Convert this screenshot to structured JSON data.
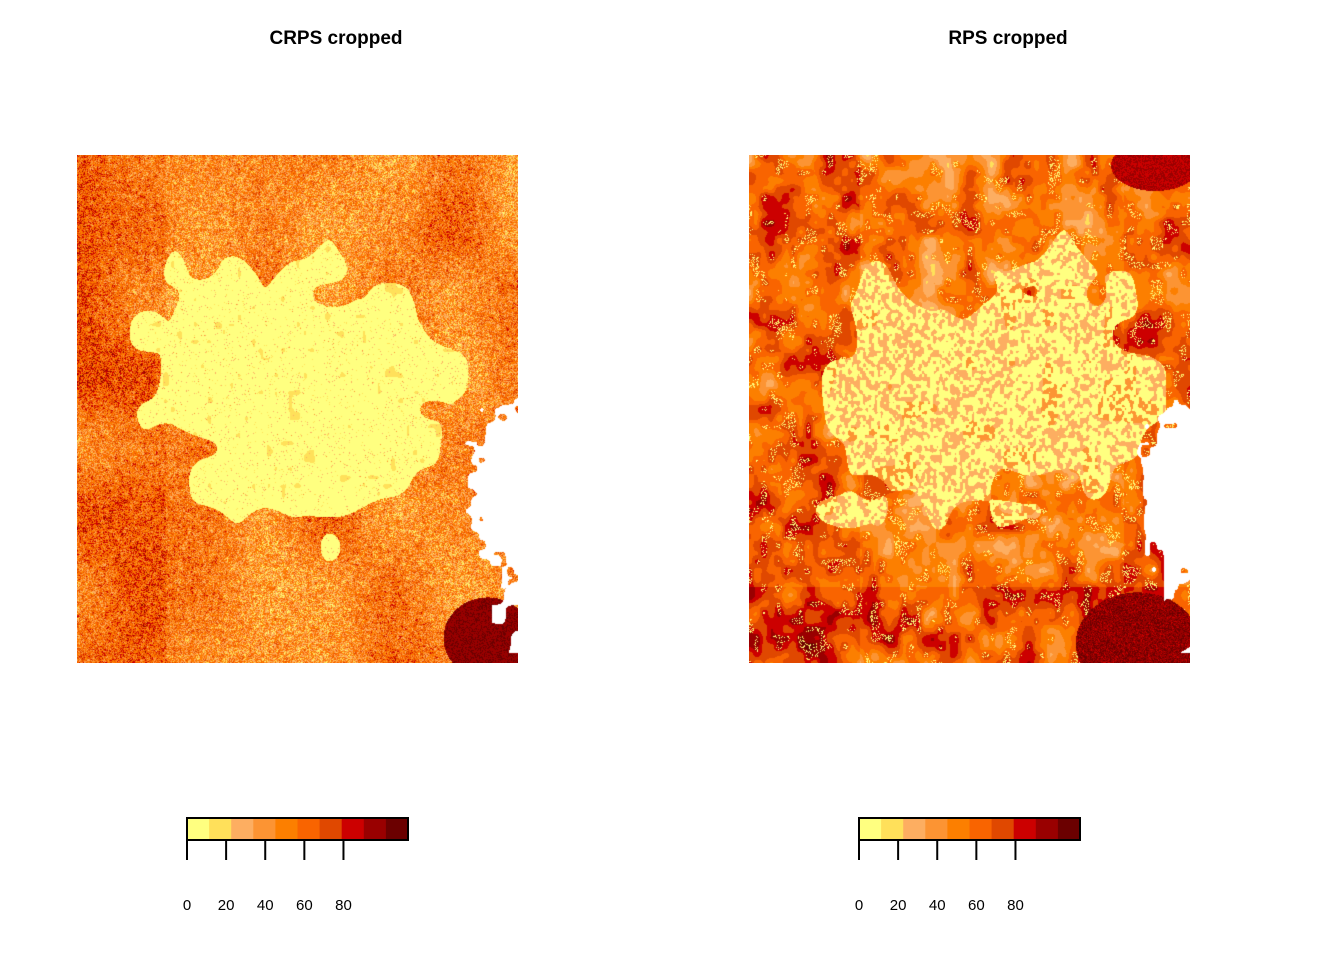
{
  "palette": [
    "#FFFF80",
    "#FFE05A",
    "#FDAE61",
    "#FC9433",
    "#FC7F00",
    "#F96400",
    "#E04800",
    "#CC0000",
    "#990000",
    "#6B0000"
  ],
  "panels": [
    {
      "title": "CRPS cropped",
      "style": "speckled"
    },
    {
      "title": "RPS cropped",
      "style": "blobby"
    }
  ],
  "chart_data": [
    {
      "type": "heatmap",
      "title": "CRPS cropped",
      "color_scale": {
        "breaks": [
          0,
          10,
          20,
          30,
          40,
          50,
          60,
          70,
          80,
          90,
          100
        ],
        "ticks": [
          0,
          20,
          40,
          60,
          80
        ],
        "tick_labels": [
          "0",
          "20",
          "40",
          "60",
          "80"
        ]
      },
      "description_levels": {
        "center_region": "low (0-10)",
        "periphery": "moderate (20-60)",
        "south_east_corner": "high (70-100)"
      }
    },
    {
      "type": "heatmap",
      "title": "RPS cropped",
      "color_scale": {
        "breaks": [
          0,
          10,
          20,
          30,
          40,
          50,
          60,
          70,
          80,
          90,
          100
        ],
        "ticks": [
          0,
          20,
          40,
          60,
          80
        ],
        "tick_labels": [
          "0",
          "20",
          "40",
          "60",
          "80"
        ]
      },
      "description_levels": {
        "center_region": "low (0-10)",
        "periphery": "moderate-high (30-70)",
        "south_east_corner": "high (70-100)"
      }
    }
  ]
}
